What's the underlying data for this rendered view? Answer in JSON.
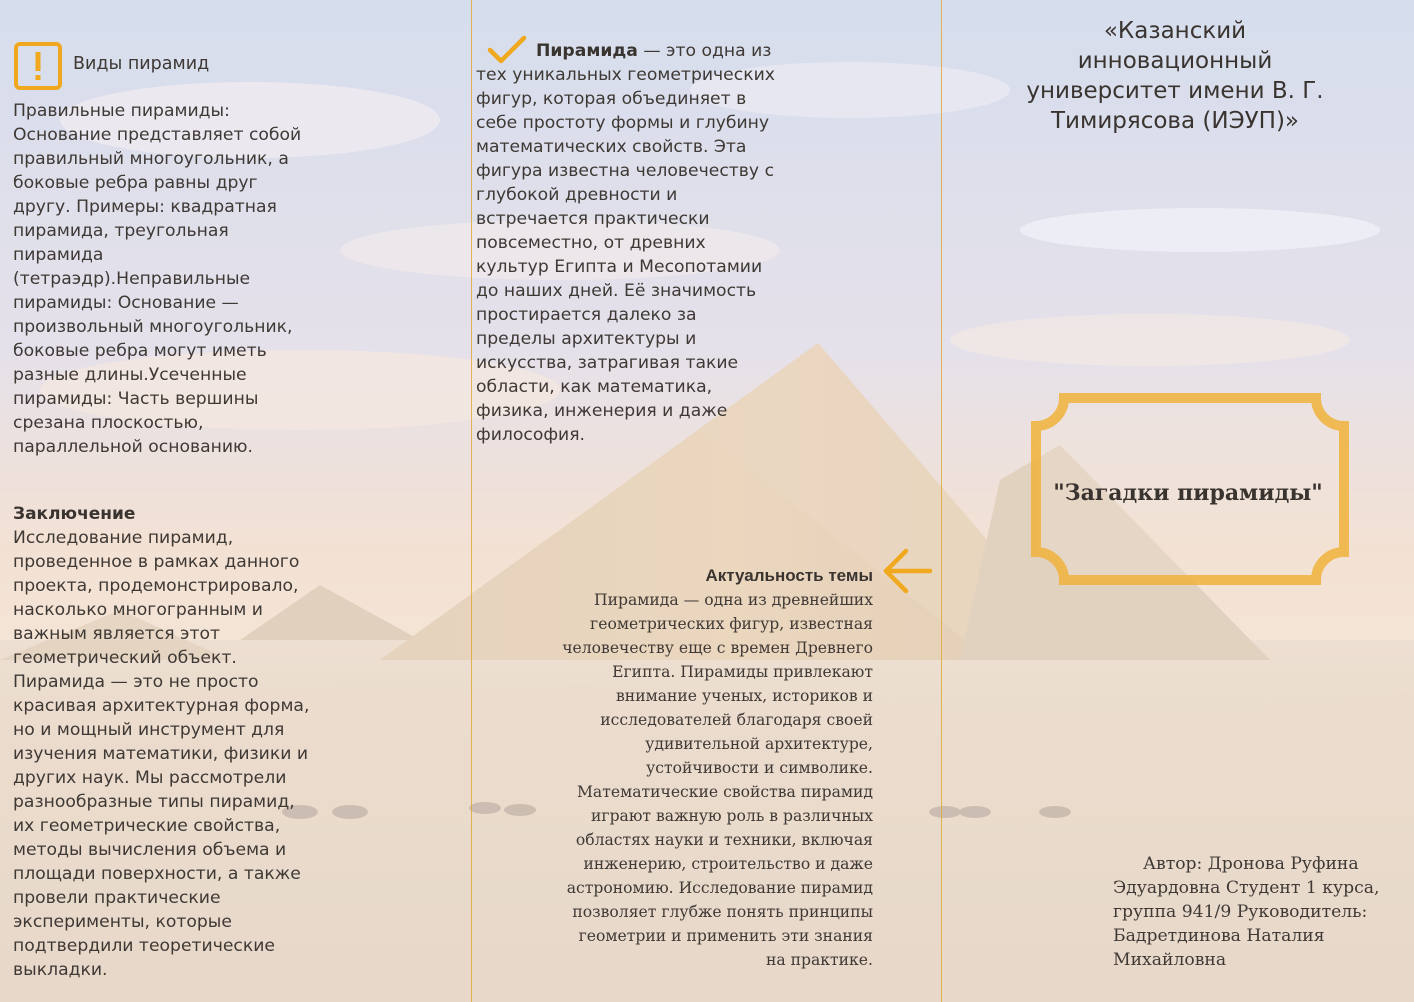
{
  "column1": {
    "heading": "Виды пирамид",
    "icon": "warning-icon",
    "body": "Правильные пирамиды: Основание представляет собой правильный многоугольник, а боковые ребра равны друг другу. Примеры: квадратная пирамида, треугольная пирамида (тетраэдр).Неправильные пирамиды: Основание — произвольный многоугольник, боковые ребра могут иметь разные длины.Усеченные пирамиды: Часть вершины срезана плоскостью, параллельной основанию.",
    "conclusion_heading": "Заключение",
    "conclusion_body": "Исследование пирамид, проведенное в рамках данного проекта, продемонстрировало, насколько многогранным и важным является этот геометрический объект. Пирамида — это не просто красивая архитектурная форма, но и мощный инструмент для изучения математики, физики и других наук. Мы рассмотрели разнообразные типы пирамид, их геометрические свойства, методы вычисления объема и площади поверхности, а также провели практические эксперименты, которые подтвердили теоретические выкладки."
  },
  "column2": {
    "icon": "checkmark-icon",
    "intro_term": "Пирамида",
    "intro_rest": " — это одна из тех уникальных геометрических фигур, которая объединяет в себе простоту формы и глубину математических свойств. Эта фигура известна человечеству с глубокой древности и встречается практически повсеместно, от древних культур Египта и Месопотамии до наших дней. Её значимость простирается далеко за пределы архитектуры и искусства, затрагивая такие области, как математика, физика, инженерия и даже философия.",
    "relevance_icon": "arrow-left-icon",
    "relevance_heading": "Актуальность темы",
    "relevance_body": "Пирамида — одна из древнейших геометрических фигур, известная человечеству еще с времен Древнего Египта. Пирамиды привлекают внимание ученых, историков и исследователей благодаря своей удивительной архитектуре, устойчивости и символике. Математические свойства пирамид играют важную роль в различных областях науки и техники, включая инженерию, строительство и даже астрономию. Исследование пирамид позволяет глубже понять принципы геометрии и применить эти знания на практике."
  },
  "column3": {
    "university": "«Казанский инновационный университет имени В. Г. Тимирясова (ИЭУП)»",
    "title": "\"Загадки пирамиды\"",
    "author": "Автор: Дронова Руфина Эдуардовна Студент 1 курса, группа 941/9 Руководитель: Бадретдинова Наталия Михайловна"
  },
  "colors": {
    "accent": "#f0a81e",
    "panel_line": "#e0a93a",
    "text": "#3f3935"
  }
}
